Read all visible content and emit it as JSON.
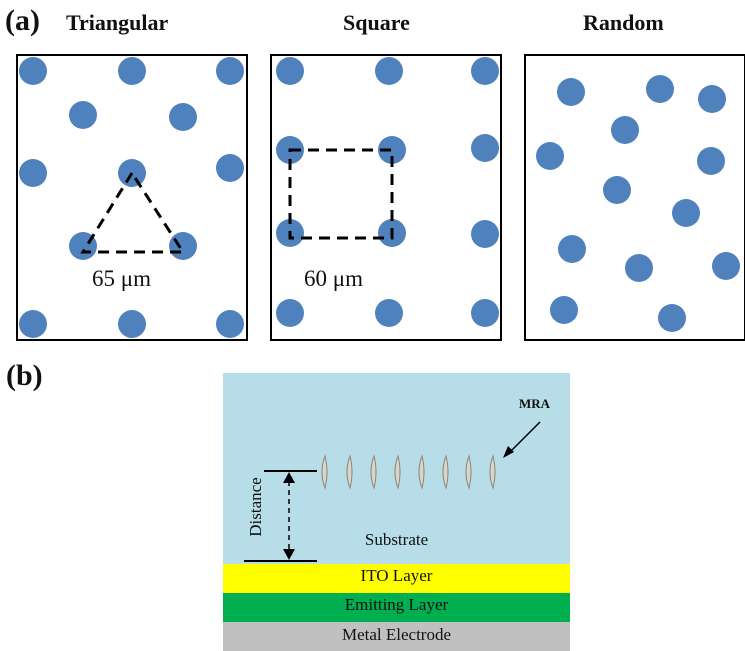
{
  "panel_a": {
    "letter": "(a)",
    "titles": [
      "Triangular",
      "Square",
      "Random"
    ],
    "lattice_labels": [
      "65 μm",
      "60 μm"
    ]
  },
  "panel_b": {
    "letter": "(b)",
    "mra_label": "MRA",
    "distance_label": "Distance",
    "substrate_label": "Substrate",
    "layers": [
      {
        "name": "ITO Layer",
        "color": "#ffff00"
      },
      {
        "name": "Emitting Layer",
        "color": "#00b050"
      },
      {
        "name": "Metal Electrode",
        "color": "#c0c0c0"
      }
    ],
    "substrate_color": "#b7dde8"
  },
  "colors": {
    "dot": "#4f81bd",
    "frame": "#000000"
  }
}
